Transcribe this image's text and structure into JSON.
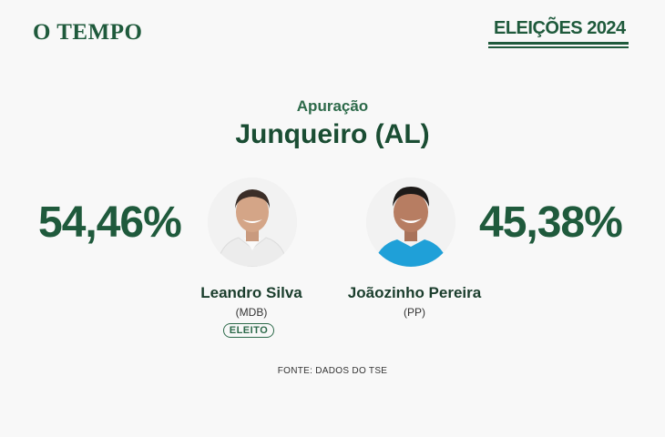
{
  "header": {
    "brand": "O TEMPO",
    "elections_label": "ELEIÇÕES 2024"
  },
  "main": {
    "kicker": "Apuração",
    "city": "Junqueiro (AL)"
  },
  "candidates": [
    {
      "name": "Leandro Silva",
      "party": "(MDB)",
      "percent": "54,46%",
      "status": "ELEITO"
    },
    {
      "name": "Joãozinho Pereira",
      "party": "(PP)",
      "percent": "45,38%"
    }
  ],
  "footer": {
    "source": "FONTE: DADOS DO TSE"
  },
  "colors": {
    "accent": "#1f5a3c",
    "background": "#f8f8f8"
  }
}
